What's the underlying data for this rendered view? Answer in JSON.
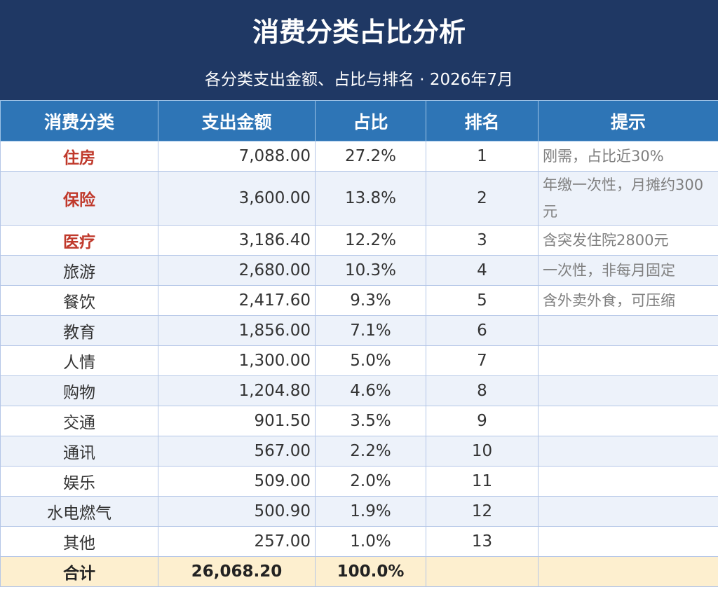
{
  "title": "消费分类占比分析",
  "subtitle": "各分类支出金额、占比与排名 · 2026年7月",
  "columns": [
    "消费分类",
    "支出金额",
    "占比",
    "排名",
    "提示"
  ],
  "rows": [
    {
      "category": "住房",
      "amount": "7,088.00",
      "percent": "27.2%",
      "rank": "1",
      "tip": "刚需，占比近30%"
    },
    {
      "category": "保险",
      "amount": "3,600.00",
      "percent": "13.8%",
      "rank": "2",
      "tip": "年缴一次性，月摊约300元"
    },
    {
      "category": "医疗",
      "amount": "3,186.40",
      "percent": "12.2%",
      "rank": "3",
      "tip": "含突发住院2800元"
    },
    {
      "category": "旅游",
      "amount": "2,680.00",
      "percent": "10.3%",
      "rank": "4",
      "tip": "一次性，非每月固定"
    },
    {
      "category": "餐饮",
      "amount": "2,417.60",
      "percent": "9.3%",
      "rank": "5",
      "tip": "含外卖外食，可压缩"
    },
    {
      "category": "教育",
      "amount": "1,856.00",
      "percent": "7.1%",
      "rank": "6",
      "tip": ""
    },
    {
      "category": "人情",
      "amount": "1,300.00",
      "percent": "5.0%",
      "rank": "7",
      "tip": ""
    },
    {
      "category": "购物",
      "amount": "1,204.80",
      "percent": "4.6%",
      "rank": "8",
      "tip": ""
    },
    {
      "category": "交通",
      "amount": "901.50",
      "percent": "3.5%",
      "rank": "9",
      "tip": ""
    },
    {
      "category": "通讯",
      "amount": "567.00",
      "percent": "2.2%",
      "rank": "10",
      "tip": ""
    },
    {
      "category": "娱乐",
      "amount": "509.00",
      "percent": "2.0%",
      "rank": "11",
      "tip": ""
    },
    {
      "category": "水电燃气",
      "amount": "500.90",
      "percent": "1.9%",
      "rank": "12",
      "tip": ""
    },
    {
      "category": "其他",
      "amount": "257.00",
      "percent": "1.0%",
      "rank": "13",
      "tip": ""
    }
  ],
  "total": {
    "label": "合计",
    "amount": "26,068.20",
    "percent": "100.0%"
  },
  "colors": {
    "banner": "#1f3864",
    "header": "#2e75b6",
    "highlight": "#c0392b",
    "total_row": "#fdefcf",
    "alt_row": "#edf2fa"
  }
}
